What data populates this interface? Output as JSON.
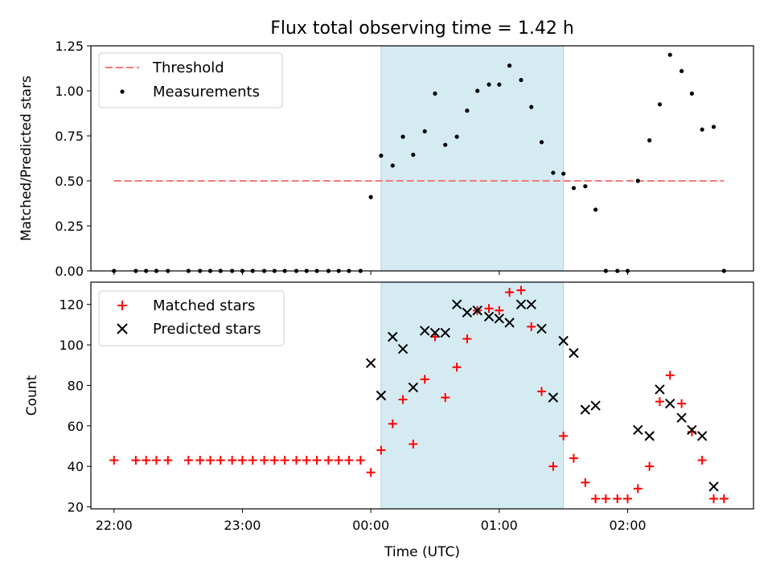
{
  "chart_data": [
    {
      "type": "scatter",
      "title": "Flux total observing time = 1.42 h",
      "xlabel": "",
      "ylabel": "Matched/Predicted stars",
      "ylim": [
        0,
        1.25
      ],
      "yticks": [
        "0.00",
        "0.25",
        "0.50",
        "0.75",
        "1.00",
        "1.25"
      ],
      "ytick_values": [
        0,
        0.25,
        0.5,
        0.75,
        1.0,
        1.25
      ],
      "xlim_hours": [
        -2.18,
        2.98
      ],
      "shaded_span_hours": [
        0.08,
        1.5
      ],
      "shaded_color": "#d4ebf2",
      "legend_position": "upper-left",
      "threshold": {
        "name": "Threshold",
        "value": 0.5,
        "x_range_hours": [
          -2.0,
          2.75
        ],
        "color": "#f47a7a"
      },
      "measurements": {
        "name": "Measurements",
        "color": "#000000",
        "x_hours": [
          -2.0,
          -1.83,
          -1.75,
          -1.67,
          -1.58,
          -1.42,
          -1.33,
          -1.25,
          -1.17,
          -1.08,
          -1.0,
          -0.92,
          -0.83,
          -0.75,
          -0.67,
          -0.58,
          -0.5,
          -0.42,
          -0.33,
          -0.25,
          -0.17,
          -0.08,
          0.0,
          0.08,
          0.17,
          0.25,
          0.33,
          0.42,
          0.5,
          0.58,
          0.67,
          0.75,
          0.83,
          0.92,
          1.0,
          1.08,
          1.17,
          1.25,
          1.33,
          1.42,
          1.5,
          1.58,
          1.67,
          1.75,
          1.83,
          1.92,
          2.0,
          2.08,
          2.17,
          2.25,
          2.33,
          2.42,
          2.5,
          2.58,
          2.67,
          2.75
        ],
        "y": [
          0,
          0,
          0,
          0,
          0,
          0,
          0,
          0,
          0,
          0,
          0,
          0,
          0,
          0,
          0,
          0,
          0,
          0,
          0,
          0,
          0,
          0,
          0.41,
          0.64,
          0.585,
          0.745,
          0.645,
          0.775,
          0.985,
          0.7,
          0.745,
          0.89,
          1.0,
          1.035,
          1.035,
          1.14,
          1.06,
          0.91,
          0.715,
          0.545,
          0.54,
          0.46,
          0.47,
          0.34,
          0,
          0,
          0,
          0.5,
          0.725,
          0.925,
          1.2,
          1.11,
          0.985,
          0.785,
          0.8,
          0
        ]
      }
    },
    {
      "type": "scatter",
      "title": "",
      "xlabel": "Time (UTC)",
      "ylabel": "Count",
      "ylim": [
        19,
        131
      ],
      "yticks": [
        "20",
        "40",
        "60",
        "80",
        "100",
        "120"
      ],
      "ytick_values": [
        20,
        40,
        60,
        80,
        100,
        120
      ],
      "xlim_hours": [
        -2.18,
        2.98
      ],
      "xticks": [
        "22:00",
        "23:00",
        "00:00",
        "01:00",
        "02:00"
      ],
      "xtick_hours": [
        -2,
        -1,
        0,
        1,
        2
      ],
      "shaded_span_hours": [
        0.08,
        1.5
      ],
      "legend_position": "upper-left",
      "series": [
        {
          "name": "Matched stars",
          "marker": "plus",
          "color": "#ff0000",
          "x_hours": [
            -2.0,
            -1.83,
            -1.75,
            -1.67,
            -1.58,
            -1.42,
            -1.33,
            -1.25,
            -1.17,
            -1.08,
            -1.0,
            -0.92,
            -0.83,
            -0.75,
            -0.67,
            -0.58,
            -0.5,
            -0.42,
            -0.33,
            -0.25,
            -0.17,
            -0.08,
            0.0,
            0.08,
            0.17,
            0.25,
            0.33,
            0.42,
            0.5,
            0.58,
            0.67,
            0.75,
            0.83,
            0.92,
            1.0,
            1.08,
            1.17,
            1.25,
            1.33,
            1.42,
            1.5,
            1.58,
            1.67,
            1.75,
            1.83,
            1.92,
            2.0,
            2.08,
            2.17,
            2.25,
            2.33,
            2.42,
            2.5,
            2.58,
            2.67,
            2.75
          ],
          "y": [
            43,
            43,
            43,
            43,
            43,
            43,
            43,
            43,
            43,
            43,
            43,
            43,
            43,
            43,
            43,
            43,
            43,
            43,
            43,
            43,
            43,
            43,
            37,
            48,
            61,
            73,
            51,
            83,
            104,
            74,
            89,
            103,
            117,
            118,
            117,
            126,
            127,
            109,
            77,
            40,
            55,
            44,
            32,
            24,
            24,
            24,
            24,
            29,
            40,
            72,
            85,
            71,
            57,
            43,
            24,
            24
          ]
        },
        {
          "name": "Predicted stars",
          "marker": "x",
          "color": "#000000",
          "x_hours": [
            0.0,
            0.08,
            0.17,
            0.25,
            0.33,
            0.42,
            0.5,
            0.58,
            0.67,
            0.75,
            0.83,
            0.92,
            1.0,
            1.08,
            1.17,
            1.25,
            1.33,
            1.42,
            1.5,
            1.58,
            1.67,
            1.75,
            2.08,
            2.17,
            2.25,
            2.33,
            2.42,
            2.5,
            2.58,
            2.67
          ],
          "y": [
            91,
            75,
            104,
            98,
            79,
            107,
            106,
            106,
            120,
            116,
            117,
            114,
            113,
            111,
            120,
            120,
            108,
            74,
            102,
            96,
            68,
            70,
            58,
            55,
            78,
            71,
            64,
            58,
            55,
            30
          ]
        }
      ]
    }
  ]
}
